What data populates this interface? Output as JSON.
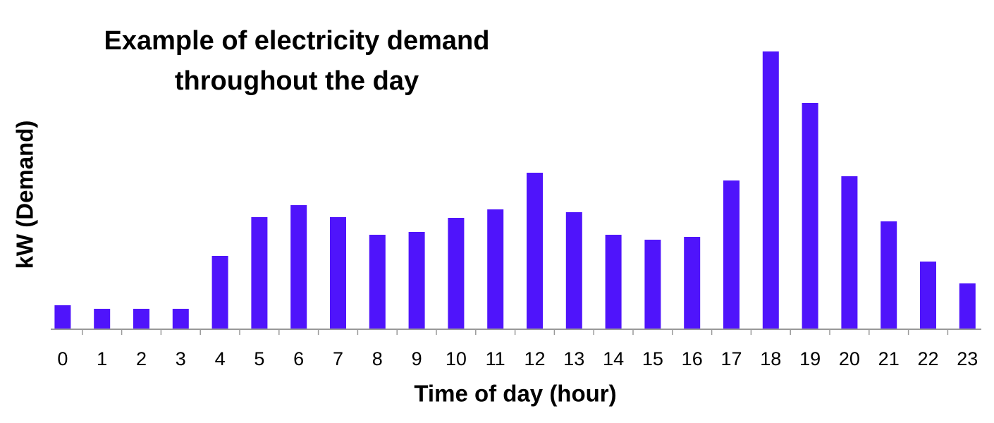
{
  "chart_data": {
    "type": "bar",
    "title": [
      "Example of electricity demand",
      "throughout the day"
    ],
    "x_label": "Time of day (hour)",
    "y_label": "kW (Demand)",
    "categories": [
      "0",
      "1",
      "2",
      "3",
      "4",
      "5",
      "6",
      "7",
      "8",
      "9",
      "10",
      "11",
      "12",
      "13",
      "14",
      "15",
      "16",
      "17",
      "18",
      "19",
      "20",
      "21",
      "22",
      "23"
    ],
    "values": [
      34,
      29,
      29,
      29,
      104,
      159,
      176,
      159,
      134,
      138,
      158,
      170,
      222,
      166,
      134,
      127,
      131,
      211,
      394,
      321,
      217,
      153,
      96,
      65
    ],
    "color": "#4f14fb",
    "ylim": [
      0,
      400
    ]
  }
}
